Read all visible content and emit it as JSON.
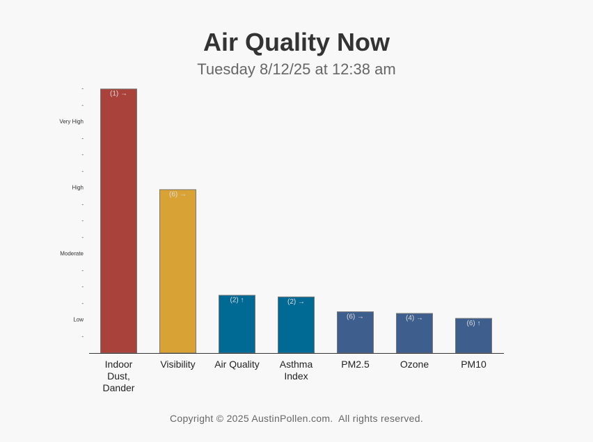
{
  "chart_data": {
    "type": "bar",
    "title": "Air Quality Now",
    "subtitle": "Tuesday 8/12/25 at 12:38 am",
    "categories": [
      "Indoor Dust, Dander",
      "Visibility",
      "Air Quality",
      "Asthma Index",
      "PM2.5",
      "Ozone",
      "PM10"
    ],
    "values": [
      16,
      9.9,
      3.5,
      3.4,
      2.5,
      2.4,
      2.1
    ],
    "annotations": [
      "(1) →",
      "(6) →",
      "(2) ↑",
      "(2) →",
      "(6) →",
      "(4) →",
      "(6) ↑"
    ],
    "colors": [
      "#a8423a",
      "#d8a334",
      "#006994",
      "#006994",
      "#3e5e8e",
      "#3e5e8e",
      "#3e5e8e"
    ],
    "ylim": [
      0,
      16
    ],
    "yticks": [
      {
        "value": 1,
        "label": "-"
      },
      {
        "value": 2,
        "label": "Low"
      },
      {
        "value": 3,
        "label": "-"
      },
      {
        "value": 4,
        "label": "-"
      },
      {
        "value": 5,
        "label": "-"
      },
      {
        "value": 6,
        "label": "Moderate"
      },
      {
        "value": 7,
        "label": "-"
      },
      {
        "value": 8,
        "label": "-"
      },
      {
        "value": 9,
        "label": "-"
      },
      {
        "value": 10,
        "label": "High"
      },
      {
        "value": 11,
        "label": "-"
      },
      {
        "value": 12,
        "label": "-"
      },
      {
        "value": 13,
        "label": "-"
      },
      {
        "value": 14,
        "label": "Very High"
      },
      {
        "value": 15,
        "label": "-"
      },
      {
        "value": 16,
        "label": "-"
      }
    ],
    "footer": "Copyright © 2025 AustinPollen.com.  All rights reserved."
  }
}
